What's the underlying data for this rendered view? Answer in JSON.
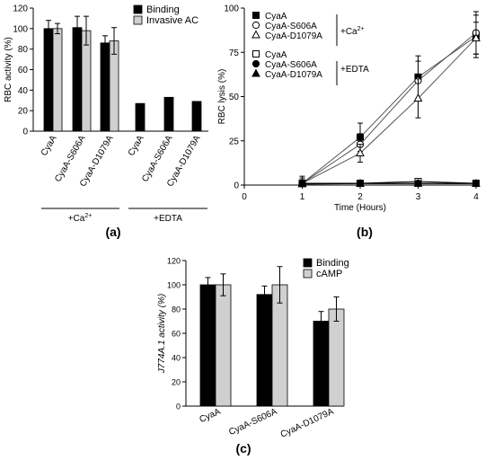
{
  "chart_data": [
    {
      "id": "a",
      "type": "bar",
      "panel_label": "(a)",
      "ylabel": "RBC activity (%)",
      "ylim": [
        0,
        120
      ],
      "yticks": [
        "0",
        "20",
        "40",
        "60",
        "80",
        "100",
        "120"
      ],
      "categories": [
        "CyaA",
        "CyaA-S606A",
        "CyaA-D1079A",
        "CyaA",
        "CyaA-S606A",
        "CyaA-D1079A"
      ],
      "groups": [
        {
          "label_main": "+Ca",
          "label_sup": "2+",
          "count": 3
        },
        {
          "label_main": "+EDTA",
          "label_sup": "",
          "count": 3
        }
      ],
      "legend": "top-right",
      "series": [
        {
          "name": "Binding",
          "color": "#000000",
          "values": [
            100,
            101,
            86,
            27,
            33,
            29
          ],
          "errors": [
            8,
            11,
            7,
            null,
            null,
            null
          ]
        },
        {
          "name": "Invasive  AC",
          "color": "#d0d0d0",
          "values": [
            100,
            98,
            88,
            null,
            null,
            null
          ],
          "errors": [
            5,
            14,
            13,
            null,
            null,
            null
          ]
        }
      ]
    },
    {
      "id": "b",
      "type": "line",
      "panel_label": "(b)",
      "ylabel": "RBC lysis (%)",
      "xlabel": "Time (Hours)",
      "xlim": [
        0,
        4
      ],
      "ylim": [
        0,
        100
      ],
      "xticks": [
        "0",
        "1",
        "2",
        "3",
        "4"
      ],
      "yticks": [
        "0",
        "25",
        "50",
        "75",
        "100"
      ],
      "x": [
        1,
        2,
        3,
        4
      ],
      "legend": "top-left",
      "legend_groups": [
        {
          "label": "+Ca",
          "sup": "2+"
        },
        {
          "label": "+EDTA",
          "sup": ""
        }
      ],
      "series": [
        {
          "name": "CyaA",
          "marker": "square-filled",
          "values": [
            1,
            27,
            61,
            84
          ],
          "errors": [
            4,
            8,
            12,
            12
          ]
        },
        {
          "name": "CyaA-S606A",
          "marker": "circle-open",
          "values": [
            1,
            23,
            59,
            86
          ],
          "errors": [
            3,
            6,
            11,
            12
          ]
        },
        {
          "name": "CyaA-D1079A",
          "marker": "triangle-open",
          "values": [
            1,
            18,
            49,
            83
          ],
          "errors": [
            2,
            5,
            11,
            9
          ]
        },
        {
          "name": "CyaA",
          "marker": "square-open",
          "values": [
            1,
            1,
            2,
            1
          ],
          "errors": [
            null,
            null,
            null,
            null
          ]
        },
        {
          "name": "CyaA-S606A",
          "marker": "circle-filled",
          "values": [
            0.8,
            1,
            1,
            1
          ],
          "errors": [
            null,
            null,
            null,
            null
          ]
        },
        {
          "name": "CyaA-D1079A",
          "marker": "triangle-filled",
          "values": [
            0.6,
            0.8,
            0.8,
            0.8
          ],
          "errors": [
            null,
            null,
            null,
            null
          ]
        }
      ]
    },
    {
      "id": "c",
      "type": "bar",
      "panel_label": "(c)",
      "ylabel": "J774A.1 activity (%)",
      "ylim": [
        0,
        120
      ],
      "yticks": [
        "0",
        "20",
        "40",
        "60",
        "80",
        "100",
        "120"
      ],
      "categories": [
        "CyaA",
        "CyaA-S606A",
        "CyaA-D1079A"
      ],
      "legend": "top-right",
      "series": [
        {
          "name": "Binding",
          "color": "#000000",
          "values": [
            100,
            92,
            70
          ],
          "errors": [
            6,
            7,
            8
          ]
        },
        {
          "name": "cAMP",
          "color": "#d0d0d0",
          "values": [
            100,
            100,
            80
          ],
          "errors": [
            9,
            15,
            10
          ]
        }
      ]
    }
  ]
}
